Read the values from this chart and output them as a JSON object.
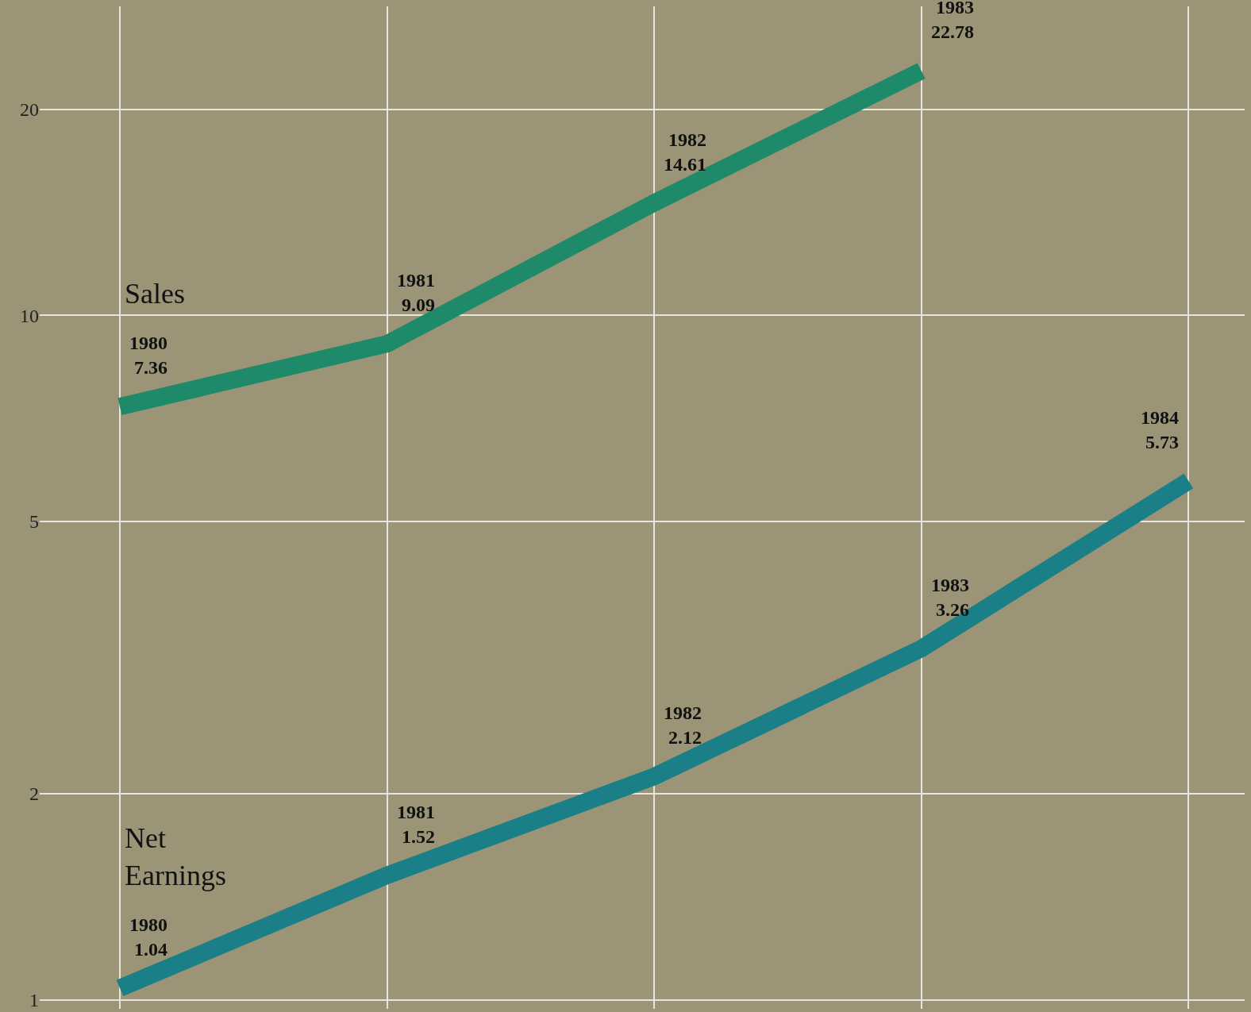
{
  "chart_data": {
    "type": "line",
    "log": "y",
    "categories": [
      null,
      null,
      null,
      null,
      null
    ],
    "series": [
      {
        "name": "Sales",
        "color": "#1f8a6a",
        "values": [
          7.36,
          9.09,
          14.61,
          22.78,
          null
        ],
        "value_labels": [
          "1980\n7.36",
          "1981\n9.09",
          "1982\n14.61",
          "1983\n22.78",
          null
        ]
      },
      {
        "name": "Net Earnings",
        "color": "#1a7f86",
        "values": [
          1.04,
          1.52,
          2.12,
          3.26,
          5.73
        ],
        "value_labels": [
          "1980\n1.04",
          "1981\n1.52",
          "1982\n2.12",
          "1983\n3.26",
          "1984\n5.73"
        ]
      }
    ],
    "ylim": [
      0.97,
      28.3
    ],
    "yticks": [
      1,
      2,
      5,
      10,
      20
    ],
    "grid": true,
    "tick_labels": "y",
    "marker": "none",
    "line_style": "solid"
  }
}
